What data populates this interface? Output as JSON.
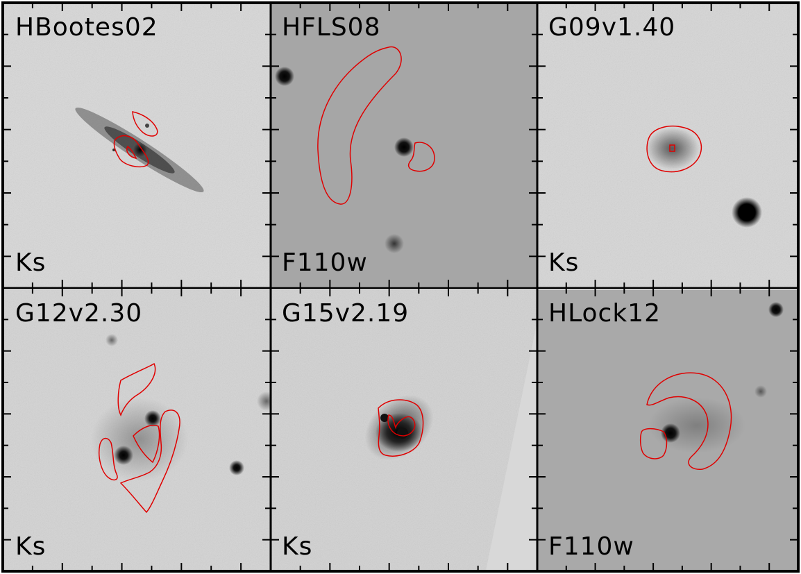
{
  "panels": [
    {
      "name": "HBootes02",
      "band": "Ks"
    },
    {
      "name": "HFLS08",
      "band": "F110w"
    },
    {
      "name": "G09v1.40",
      "band": "Ks"
    },
    {
      "name": "G12v2.30",
      "band": "Ks"
    },
    {
      "name": "G15v2.19",
      "band": "Ks"
    },
    {
      "name": "HLock12",
      "band": "F110w"
    }
  ],
  "colors": {
    "contour": "#e00000",
    "frame": "#000000"
  }
}
